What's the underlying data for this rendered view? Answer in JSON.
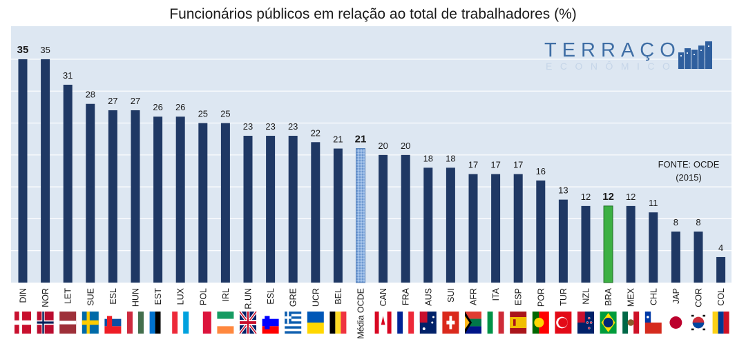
{
  "chart_data": {
    "type": "bar",
    "title": "Funcionários públicos em relação ao total de trabalhadores (%)",
    "categories": [
      "DIN",
      "NOR",
      "LET",
      "SUE",
      "ESL",
      "HUN",
      "EST",
      "LUX",
      "POL",
      "IRL",
      "R.UN",
      "ESL",
      "GRE",
      "UCR",
      "BEL",
      "Média OCDE",
      "CAN",
      "FRA",
      "AUS",
      "SUI",
      "AFR",
      "ITA",
      "ESP",
      "POR",
      "TUR",
      "NZL",
      "BRA",
      "MEX",
      "CHL",
      "JAP",
      "COR",
      "COL"
    ],
    "values": [
      35,
      35,
      31,
      28,
      27,
      27,
      26,
      26,
      25,
      25,
      23,
      23,
      23,
      22,
      21,
      21,
      20,
      20,
      18,
      18,
      17,
      17,
      17,
      16,
      13,
      12,
      12,
      12,
      11,
      8,
      8,
      4
    ],
    "ylim": [
      0,
      37
    ],
    "grid": true,
    "legend": "none",
    "highlight": {
      "Média OCDE": "ocde-average",
      "BRA": "brazil"
    },
    "bold_labels": [
      "DIN",
      "Média OCDE",
      "BRA"
    ]
  },
  "source_note": {
    "line1": "FONTE: OCDE",
    "line2": "(2015)"
  },
  "logo": {
    "main": "TERRAÇO",
    "sub": "ECONÔMICO"
  },
  "colors": {
    "bar": "#1f3864",
    "brazil_bar": "#3cb043",
    "ocde_bar": "#8fb4e3",
    "plot_bg": "#dde7f2",
    "grid": "#ffffff",
    "logo_main": "#3f6ea5",
    "logo_sub": "#c5d5e8"
  }
}
